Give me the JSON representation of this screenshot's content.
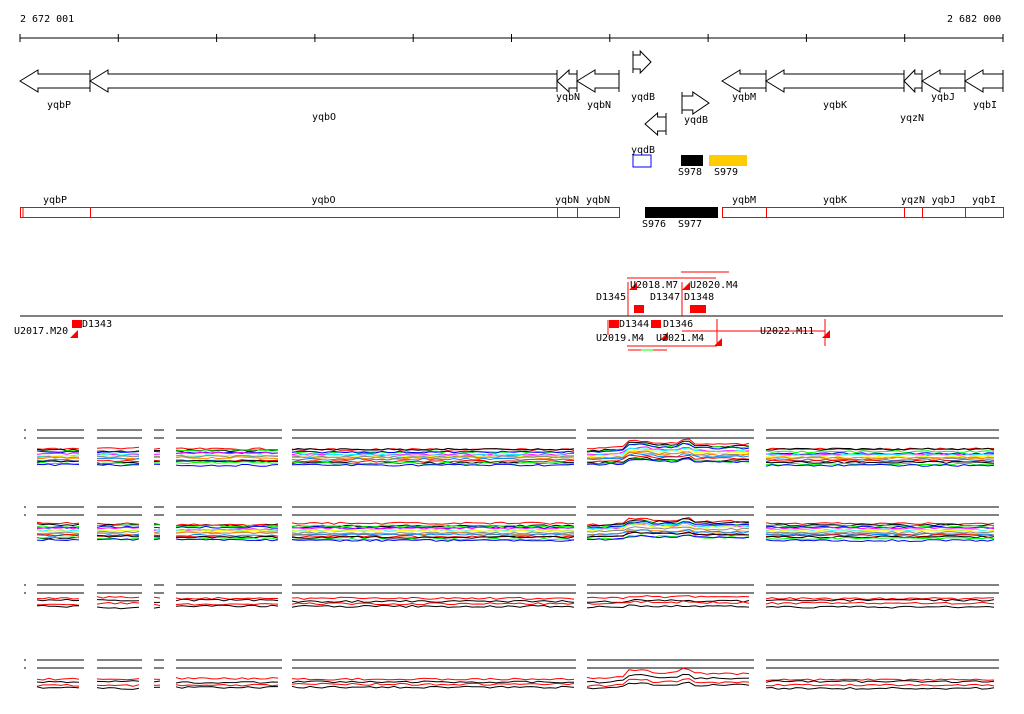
{
  "ruler": {
    "start_label": "2 672 001",
    "end_label": "2 682 000"
  },
  "genes": [
    {
      "name": "yqbP",
      "strand": "-"
    },
    {
      "name": "yqbO",
      "strand": "-"
    },
    {
      "name": "yqbN",
      "strand": "-"
    },
    {
      "name": "yqbN",
      "strand": "-"
    },
    {
      "name": "yqdB",
      "strand": "+"
    },
    {
      "name": "yqdB",
      "strand": "+"
    },
    {
      "name": "yqdB",
      "strand": "-"
    },
    {
      "name": "yqbM",
      "strand": "-"
    },
    {
      "name": "yqbK",
      "strand": "-"
    },
    {
      "name": "yqzN",
      "strand": "-"
    },
    {
      "name": "yqbJ",
      "strand": "-"
    },
    {
      "name": "yqbI",
      "strand": "-"
    }
  ],
  "features": [
    {
      "name": "S978",
      "color": "#000000"
    },
    {
      "name": "S979",
      "color": "#ffcc00"
    },
    {
      "name": "S976",
      "color": "#000000"
    },
    {
      "name": "S977",
      "color": "#000000"
    }
  ],
  "feature_box_color": "#ff0000",
  "probes": [
    "U2017.M20",
    "D1343",
    "D1345",
    "U2018.M7",
    "U2020.M4",
    "D1347",
    "D1348",
    "D1344",
    "D1346",
    "U2019.M4",
    "U2021.M4",
    "U2022.M11"
  ],
  "track_colors": [
    "#ff0000",
    "#000000",
    "#00ff00",
    "#0000ff",
    "#ff00ff",
    "#00ffff",
    "#ffff00",
    "#888888",
    "#ff8800",
    "#0088ff"
  ]
}
